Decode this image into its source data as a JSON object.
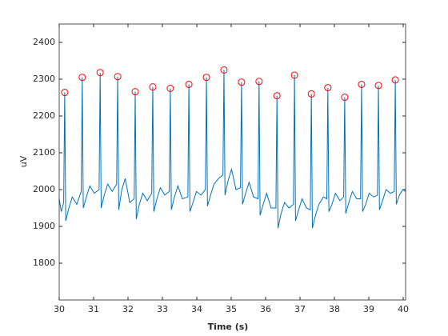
{
  "chart_data": {
    "type": "line",
    "xlabel": "Time (s)",
    "ylabel": "uV",
    "xlim": [
      30,
      40.07
    ],
    "ylim": [
      1700,
      2450
    ],
    "xticks": [
      30,
      31,
      32,
      33,
      34,
      35,
      36,
      37,
      38,
      39,
      40
    ],
    "yticks": [
      1800,
      1900,
      2000,
      2100,
      2200,
      2300,
      2400
    ],
    "grid": false,
    "series": [
      {
        "type": "line",
        "color": "#0072bd",
        "x": [
          30.0,
          30.06,
          30.13,
          30.16,
          30.19,
          30.28,
          30.38,
          30.51,
          30.64,
          30.67,
          30.7,
          30.79,
          30.89,
          31.02,
          31.16,
          31.19,
          31.22,
          31.31,
          31.41,
          31.54,
          31.67,
          31.7,
          31.73,
          31.82,
          31.92,
          32.05,
          32.18,
          32.21,
          32.24,
          32.33,
          32.43,
          32.56,
          32.69,
          32.72,
          32.75,
          32.84,
          32.94,
          33.07,
          33.2,
          33.23,
          33.26,
          33.35,
          33.45,
          33.58,
          33.74,
          33.77,
          33.8,
          33.89,
          33.99,
          34.12,
          34.25,
          34.28,
          34.31,
          34.4,
          34.5,
          34.63,
          34.76,
          34.79,
          34.82,
          34.91,
          35.01,
          35.14,
          35.27,
          35.3,
          35.33,
          35.42,
          35.52,
          35.65,
          35.78,
          35.81,
          35.84,
          35.93,
          36.03,
          36.16,
          36.3,
          36.33,
          36.36,
          36.45,
          36.55,
          36.68,
          36.81,
          36.84,
          36.87,
          36.96,
          37.06,
          37.19,
          37.3,
          37.33,
          37.36,
          37.45,
          37.55,
          37.68,
          37.78,
          37.81,
          37.84,
          37.93,
          38.03,
          38.16,
          38.27,
          38.3,
          38.33,
          38.42,
          38.52,
          38.65,
          38.76,
          38.79,
          38.82,
          38.91,
          39.01,
          39.14,
          39.25,
          39.28,
          39.31,
          39.4,
          39.5,
          39.63,
          39.74,
          39.77,
          39.8,
          39.89,
          39.99,
          40.07
        ],
        "values": [
          1975,
          1940,
          1965,
          2264,
          1915,
          1950,
          1980,
          1960,
          1995,
          2305,
          1950,
          1980,
          2010,
          1990,
          2000,
          2318,
          1950,
          1985,
          2015,
          1995,
          2015,
          2307,
          1945,
          2000,
          2030,
          1965,
          1975,
          2266,
          1920,
          1960,
          1990,
          1970,
          1990,
          2279,
          1940,
          1975,
          2005,
          1985,
          1995,
          2275,
          1945,
          1980,
          2010,
          1975,
          1980,
          2286,
          1940,
          1965,
          1995,
          1985,
          2000,
          2305,
          1955,
          1985,
          2015,
          2030,
          2040,
          2325,
          1985,
          2025,
          2055,
          2000,
          2005,
          2292,
          1960,
          1990,
          2020,
          1980,
          1975,
          2294,
          1930,
          1960,
          1990,
          1950,
          1950,
          2255,
          1895,
          1935,
          1965,
          1950,
          1960,
          2311,
          1915,
          1945,
          1975,
          1950,
          1945,
          2260,
          1895,
          1930,
          1960,
          1980,
          1975,
          2277,
          1940,
          1960,
          1990,
          1970,
          1980,
          2251,
          1935,
          1965,
          1995,
          1975,
          1975,
          2286,
          1940,
          1960,
          1990,
          1980,
          1985,
          2283,
          1945,
          1970,
          2000,
          1990,
          1995,
          2298,
          1960,
          1985,
          2000,
          1995
        ]
      },
      {
        "type": "scatter",
        "color": "#ff0000",
        "marker": "circle",
        "x": [
          30.16,
          30.67,
          31.19,
          31.7,
          32.21,
          32.72,
          33.23,
          33.77,
          34.28,
          34.79,
          35.3,
          35.81,
          36.33,
          36.84,
          37.33,
          37.81,
          38.3,
          38.79,
          39.28,
          39.77
        ],
        "values": [
          2264,
          2305,
          2318,
          2307,
          2266,
          2279,
          2275,
          2286,
          2305,
          2325,
          2292,
          2294,
          2255,
          2311,
          2260,
          2277,
          2251,
          2286,
          2283,
          2298
        ]
      }
    ]
  }
}
